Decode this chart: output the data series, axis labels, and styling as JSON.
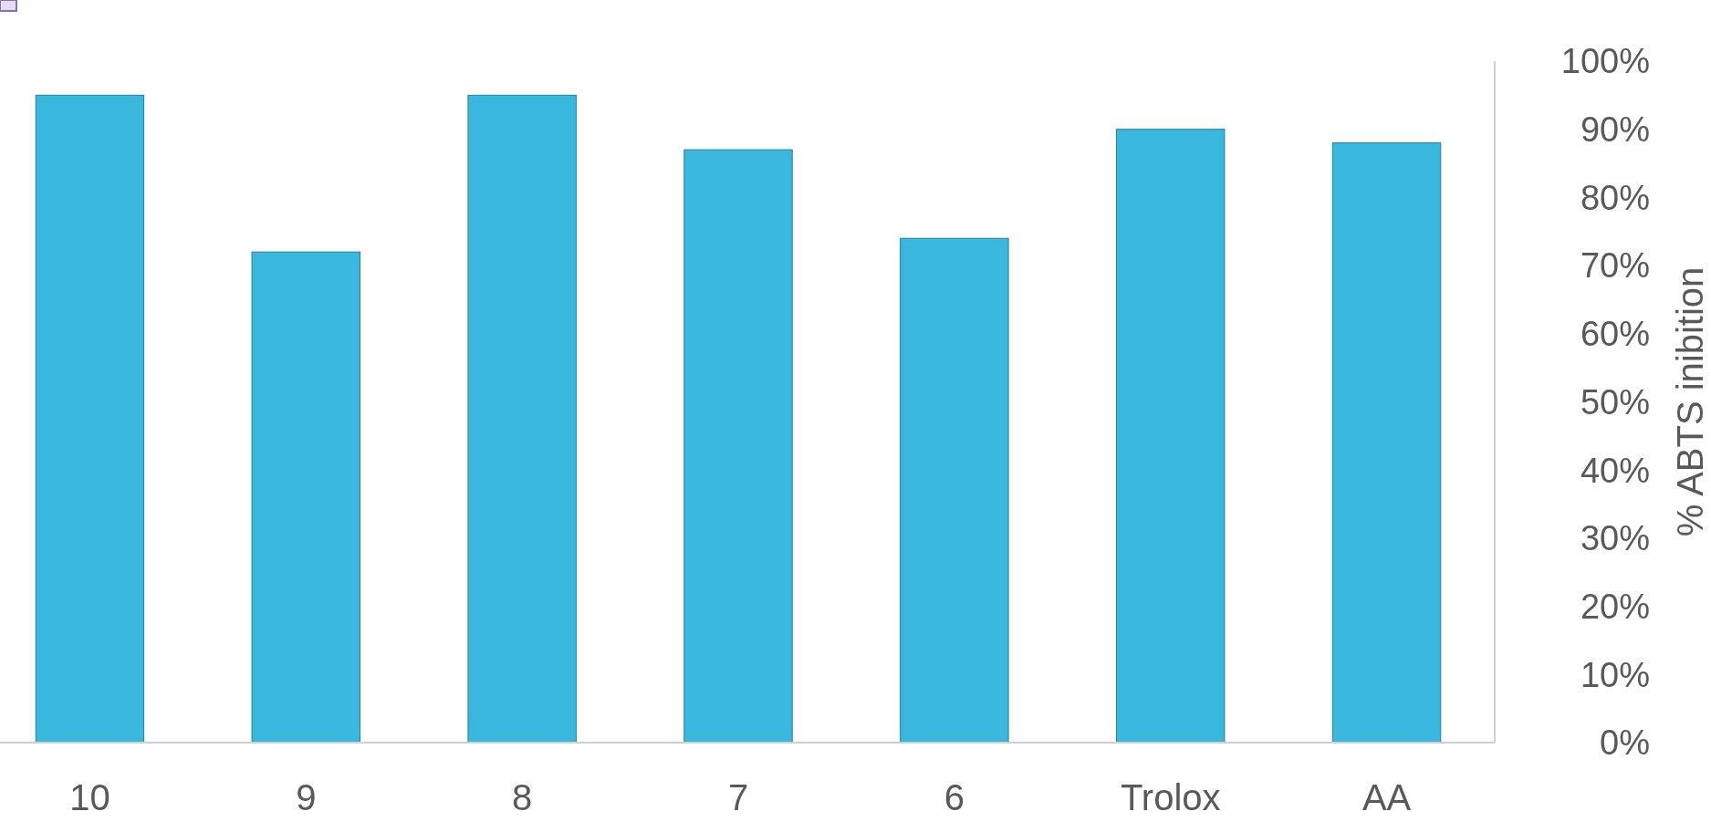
{
  "chart_data": {
    "type": "bar",
    "ylabel": "% ABTS inibition",
    "categories": [
      "10",
      "9",
      "8",
      "7",
      "6",
      "Trolox",
      "AA"
    ],
    "values": [
      95,
      72,
      95,
      87,
      74,
      90,
      88
    ],
    "color": "#3ab7dc",
    "ylim": [
      0,
      100
    ],
    "yticks": [
      {
        "value": 0,
        "label": "0%"
      },
      {
        "value": 10,
        "label": "10%"
      },
      {
        "value": 20,
        "label": "20%"
      },
      {
        "value": 30,
        "label": "30%"
      },
      {
        "value": 40,
        "label": "40%"
      },
      {
        "value": 50,
        "label": "50%"
      },
      {
        "value": 60,
        "label": "60%"
      },
      {
        "value": 70,
        "label": "70%"
      },
      {
        "value": 80,
        "label": "80%"
      },
      {
        "value": 90,
        "label": "90%"
      },
      {
        "value": 100,
        "label": "100%"
      }
    ]
  }
}
